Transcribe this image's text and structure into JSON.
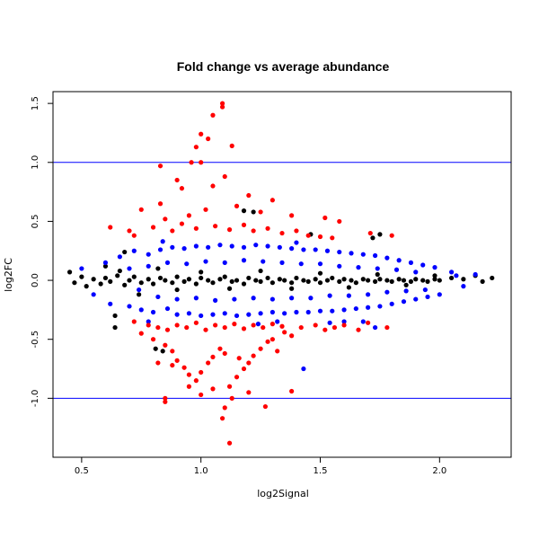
{
  "chart_data": {
    "type": "scatter",
    "title": "Fold change vs average abundance",
    "xlabel": "log2Signal",
    "ylabel": "log2FC",
    "xlim": [
      0.38,
      2.3
    ],
    "ylim": [
      -1.5,
      1.6
    ],
    "x_ticks": [
      "0.5",
      "1.0",
      "1.5",
      "2.0"
    ],
    "y_ticks": [
      "-1.0",
      "-0.5",
      "0.0",
      "0.5",
      "1.0",
      "1.5"
    ],
    "grid": false,
    "legend": "none",
    "reference_lines": [
      {
        "axis": "y",
        "value": 1.0,
        "color": "#0000ff"
      },
      {
        "axis": "y",
        "value": -1.0,
        "color": "#0000ff"
      }
    ],
    "series": [
      {
        "color": "#000000",
        "points": [
          [
            0.45,
            0.07
          ],
          [
            0.47,
            -0.02
          ],
          [
            0.5,
            0.03
          ],
          [
            0.52,
            -0.05
          ],
          [
            0.55,
            0.01
          ],
          [
            0.58,
            -0.03
          ],
          [
            0.6,
            0.02
          ],
          [
            0.62,
            -0.01
          ],
          [
            0.65,
            0.04
          ],
          [
            0.68,
            -0.04
          ],
          [
            0.7,
            0.0
          ],
          [
            0.72,
            0.03
          ],
          [
            0.75,
            -0.02
          ],
          [
            0.78,
            0.01
          ],
          [
            0.8,
            -0.03
          ],
          [
            0.83,
            0.02
          ],
          [
            0.85,
            0.0
          ],
          [
            0.88,
            -0.02
          ],
          [
            0.9,
            0.03
          ],
          [
            0.93,
            -0.01
          ],
          [
            0.95,
            0.01
          ],
          [
            0.98,
            -0.03
          ],
          [
            1.0,
            0.02
          ],
          [
            1.03,
            0.0
          ],
          [
            1.05,
            -0.02
          ],
          [
            1.08,
            0.01
          ],
          [
            1.1,
            0.03
          ],
          [
            1.13,
            -0.01
          ],
          [
            1.15,
            0.0
          ],
          [
            1.18,
            -0.03
          ],
          [
            1.2,
            0.02
          ],
          [
            1.23,
            0.0
          ],
          [
            1.25,
            -0.01
          ],
          [
            1.28,
            0.02
          ],
          [
            1.3,
            -0.02
          ],
          [
            1.33,
            0.01
          ],
          [
            1.35,
            0.0
          ],
          [
            1.38,
            -0.02
          ],
          [
            1.4,
            0.02
          ],
          [
            1.43,
            0.0
          ],
          [
            1.45,
            -0.01
          ],
          [
            1.48,
            0.01
          ],
          [
            1.5,
            -0.02
          ],
          [
            1.53,
            0.0
          ],
          [
            1.55,
            0.02
          ],
          [
            1.58,
            -0.01
          ],
          [
            1.6,
            0.01
          ],
          [
            1.63,
            0.0
          ],
          [
            1.65,
            -0.02
          ],
          [
            1.68,
            0.01
          ],
          [
            1.7,
            0.0
          ],
          [
            1.73,
            -0.01
          ],
          [
            1.75,
            0.01
          ],
          [
            1.78,
            0.0
          ],
          [
            1.8,
            -0.01
          ],
          [
            1.83,
            0.01
          ],
          [
            1.85,
            0.0
          ],
          [
            1.88,
            -0.01
          ],
          [
            1.9,
            0.01
          ],
          [
            1.93,
            0.0
          ],
          [
            1.95,
            -0.01
          ],
          [
            1.98,
            0.01
          ],
          [
            2.0,
            0.0
          ],
          [
            2.05,
            0.02
          ],
          [
            2.1,
            0.01
          ],
          [
            2.15,
            0.04
          ],
          [
            2.18,
            -0.01
          ],
          [
            2.22,
            0.02
          ],
          [
            0.6,
            0.12
          ],
          [
            0.66,
            0.08
          ],
          [
            0.74,
            -0.12
          ],
          [
            0.82,
            0.1
          ],
          [
            0.9,
            -0.08
          ],
          [
            1.0,
            0.07
          ],
          [
            1.12,
            -0.07
          ],
          [
            1.25,
            0.08
          ],
          [
            1.38,
            -0.07
          ],
          [
            1.5,
            0.06
          ],
          [
            1.62,
            -0.06
          ],
          [
            1.74,
            0.05
          ],
          [
            1.86,
            -0.04
          ],
          [
            1.98,
            0.04
          ],
          [
            0.68,
            0.24
          ],
          [
            0.64,
            -0.3
          ],
          [
            0.81,
            -0.58
          ],
          [
            0.84,
            -0.6
          ],
          [
            1.18,
            0.59
          ],
          [
            1.22,
            0.58
          ],
          [
            1.46,
            0.39
          ],
          [
            1.75,
            0.39
          ],
          [
            1.72,
            0.36
          ],
          [
            0.64,
            -0.4
          ]
        ]
      },
      {
        "color": "#0000ff",
        "points": [
          [
            0.5,
            0.1
          ],
          [
            0.55,
            -0.12
          ],
          [
            0.6,
            0.15
          ],
          [
            0.62,
            -0.2
          ],
          [
            0.66,
            0.2
          ],
          [
            0.7,
            -0.22
          ],
          [
            0.72,
            0.25
          ],
          [
            0.75,
            -0.25
          ],
          [
            0.78,
            0.22
          ],
          [
            0.8,
            -0.27
          ],
          [
            0.83,
            0.26
          ],
          [
            0.86,
            -0.24
          ],
          [
            0.88,
            0.28
          ],
          [
            0.9,
            -0.29
          ],
          [
            0.93,
            0.27
          ],
          [
            0.95,
            -0.28
          ],
          [
            0.98,
            0.29
          ],
          [
            1.0,
            -0.3
          ],
          [
            1.03,
            0.28
          ],
          [
            1.05,
            -0.29
          ],
          [
            1.08,
            0.3
          ],
          [
            1.1,
            -0.28
          ],
          [
            1.13,
            0.29
          ],
          [
            1.15,
            -0.3
          ],
          [
            1.18,
            0.28
          ],
          [
            1.2,
            -0.29
          ],
          [
            1.23,
            0.3
          ],
          [
            1.25,
            -0.28
          ],
          [
            1.28,
            0.29
          ],
          [
            1.3,
            -0.27
          ],
          [
            1.33,
            0.28
          ],
          [
            1.35,
            -0.28
          ],
          [
            1.38,
            0.27
          ],
          [
            1.4,
            -0.27
          ],
          [
            1.43,
            0.26
          ],
          [
            1.45,
            -0.27
          ],
          [
            1.48,
            0.26
          ],
          [
            1.5,
            -0.26
          ],
          [
            1.53,
            0.25
          ],
          [
            1.55,
            -0.26
          ],
          [
            1.58,
            0.24
          ],
          [
            1.6,
            -0.25
          ],
          [
            1.63,
            0.23
          ],
          [
            1.65,
            -0.24
          ],
          [
            1.68,
            0.22
          ],
          [
            1.7,
            -0.23
          ],
          [
            1.73,
            0.21
          ],
          [
            1.75,
            -0.22
          ],
          [
            1.78,
            0.19
          ],
          [
            1.8,
            -0.2
          ],
          [
            1.83,
            0.17
          ],
          [
            1.85,
            -0.18
          ],
          [
            1.88,
            0.15
          ],
          [
            1.9,
            -0.16
          ],
          [
            1.93,
            0.13
          ],
          [
            1.95,
            -0.14
          ],
          [
            1.98,
            0.11
          ],
          [
            2.0,
            -0.12
          ],
          [
            2.05,
            0.07
          ],
          [
            2.1,
            -0.05
          ],
          [
            2.15,
            0.05
          ],
          [
            0.7,
            0.1
          ],
          [
            0.74,
            -0.08
          ],
          [
            0.78,
            0.12
          ],
          [
            0.82,
            -0.14
          ],
          [
            0.86,
            0.15
          ],
          [
            0.9,
            -0.16
          ],
          [
            0.94,
            0.14
          ],
          [
            0.98,
            -0.15
          ],
          [
            1.02,
            0.16
          ],
          [
            1.06,
            -0.17
          ],
          [
            1.1,
            0.15
          ],
          [
            1.14,
            -0.16
          ],
          [
            1.18,
            0.17
          ],
          [
            1.22,
            -0.15
          ],
          [
            1.26,
            0.16
          ],
          [
            1.3,
            -0.16
          ],
          [
            1.34,
            0.15
          ],
          [
            1.38,
            -0.15
          ],
          [
            1.42,
            0.14
          ],
          [
            1.46,
            -0.15
          ],
          [
            1.5,
            0.14
          ],
          [
            1.54,
            -0.13
          ],
          [
            1.58,
            0.12
          ],
          [
            1.62,
            -0.13
          ],
          [
            1.66,
            0.11
          ],
          [
            1.7,
            -0.12
          ],
          [
            1.74,
            0.1
          ],
          [
            1.78,
            -0.1
          ],
          [
            1.82,
            0.09
          ],
          [
            1.86,
            -0.09
          ],
          [
            1.9,
            0.07
          ],
          [
            1.94,
            -0.08
          ],
          [
            0.78,
            -0.35
          ],
          [
            0.84,
            0.33
          ],
          [
            1.24,
            -0.37
          ],
          [
            1.32,
            -0.35
          ],
          [
            1.54,
            -0.36
          ],
          [
            1.6,
            -0.35
          ],
          [
            1.4,
            0.32
          ],
          [
            1.43,
            -0.75
          ],
          [
            1.73,
            -0.4
          ],
          [
            1.68,
            -0.35
          ],
          [
            2.07,
            0.04
          ]
        ]
      },
      {
        "color": "#ff0000",
        "points": [
          [
            1.09,
            1.5
          ],
          [
            1.09,
            1.47
          ],
          [
            1.05,
            1.4
          ],
          [
            1.0,
            1.24
          ],
          [
            1.03,
            1.2
          ],
          [
            0.98,
            1.13
          ],
          [
            1.13,
            1.14
          ],
          [
            0.83,
            0.97
          ],
          [
            1.0,
            1.0
          ],
          [
            0.96,
            1.0
          ],
          [
            1.1,
            0.88
          ],
          [
            0.9,
            0.85
          ],
          [
            1.05,
            0.8
          ],
          [
            0.92,
            0.78
          ],
          [
            1.2,
            0.72
          ],
          [
            1.3,
            0.68
          ],
          [
            0.75,
            0.6
          ],
          [
            0.83,
            0.65
          ],
          [
            1.15,
            0.63
          ],
          [
            1.25,
            0.58
          ],
          [
            1.38,
            0.55
          ],
          [
            1.52,
            0.53
          ],
          [
            1.58,
            0.5
          ],
          [
            0.85,
            0.52
          ],
          [
            0.95,
            0.55
          ],
          [
            1.02,
            0.6
          ],
          [
            0.8,
            0.45
          ],
          [
            0.88,
            0.42
          ],
          [
            0.92,
            0.48
          ],
          [
            0.98,
            0.44
          ],
          [
            1.06,
            0.46
          ],
          [
            1.12,
            0.43
          ],
          [
            1.18,
            0.47
          ],
          [
            1.22,
            0.42
          ],
          [
            1.28,
            0.44
          ],
          [
            1.34,
            0.4
          ],
          [
            1.4,
            0.42
          ],
          [
            1.45,
            0.38
          ],
          [
            1.5,
            0.37
          ],
          [
            1.55,
            0.36
          ],
          [
            0.62,
            0.45
          ],
          [
            0.7,
            0.42
          ],
          [
            0.72,
            0.38
          ],
          [
            1.71,
            0.4
          ],
          [
            1.8,
            0.38
          ],
          [
            0.75,
            -0.45
          ],
          [
            0.8,
            -0.5
          ],
          [
            0.85,
            -0.55
          ],
          [
            0.88,
            -0.6
          ],
          [
            0.9,
            -0.68
          ],
          [
            0.93,
            -0.74
          ],
          [
            0.95,
            -0.8
          ],
          [
            0.98,
            -0.85
          ],
          [
            1.0,
            -0.78
          ],
          [
            1.03,
            -0.7
          ],
          [
            1.05,
            -0.65
          ],
          [
            1.08,
            -0.58
          ],
          [
            1.1,
            -0.62
          ],
          [
            1.12,
            -0.9
          ],
          [
            1.15,
            -0.82
          ],
          [
            1.18,
            -0.75
          ],
          [
            1.2,
            -0.7
          ],
          [
            1.22,
            -0.64
          ],
          [
            1.25,
            -0.58
          ],
          [
            1.28,
            -0.52
          ],
          [
            1.3,
            -0.5
          ],
          [
            1.32,
            -0.6
          ],
          [
            1.35,
            -0.44
          ],
          [
            1.38,
            -0.47
          ],
          [
            1.42,
            -0.4
          ],
          [
            1.48,
            -0.38
          ],
          [
            1.52,
            -0.42
          ],
          [
            1.56,
            -0.4
          ],
          [
            1.6,
            -0.38
          ],
          [
            1.66,
            -0.42
          ],
          [
            1.7,
            -0.36
          ],
          [
            1.78,
            -0.4
          ],
          [
            0.72,
            -0.35
          ],
          [
            0.78,
            -0.38
          ],
          [
            0.82,
            -0.4
          ],
          [
            0.86,
            -0.42
          ],
          [
            0.9,
            -0.38
          ],
          [
            0.94,
            -0.4
          ],
          [
            0.98,
            -0.36
          ],
          [
            1.02,
            -0.42
          ],
          [
            1.06,
            -0.38
          ],
          [
            1.1,
            -0.4
          ],
          [
            1.14,
            -0.37
          ],
          [
            1.18,
            -0.41
          ],
          [
            1.22,
            -0.38
          ],
          [
            1.26,
            -0.4
          ],
          [
            1.3,
            -0.37
          ],
          [
            1.34,
            -0.39
          ],
          [
            0.85,
            -1.0
          ],
          [
            0.85,
            -1.03
          ],
          [
            1.0,
            -0.97
          ],
          [
            1.09,
            -1.17
          ],
          [
            1.1,
            -1.08
          ],
          [
            1.12,
            -1.38
          ],
          [
            1.13,
            -1.0
          ],
          [
            1.27,
            -1.07
          ],
          [
            1.38,
            -0.94
          ],
          [
            0.95,
            -0.9
          ],
          [
            1.05,
            -0.92
          ],
          [
            1.2,
            -0.95
          ],
          [
            0.82,
            -0.7
          ],
          [
            0.88,
            -0.72
          ],
          [
            1.16,
            -0.66
          ]
        ]
      }
    ]
  }
}
